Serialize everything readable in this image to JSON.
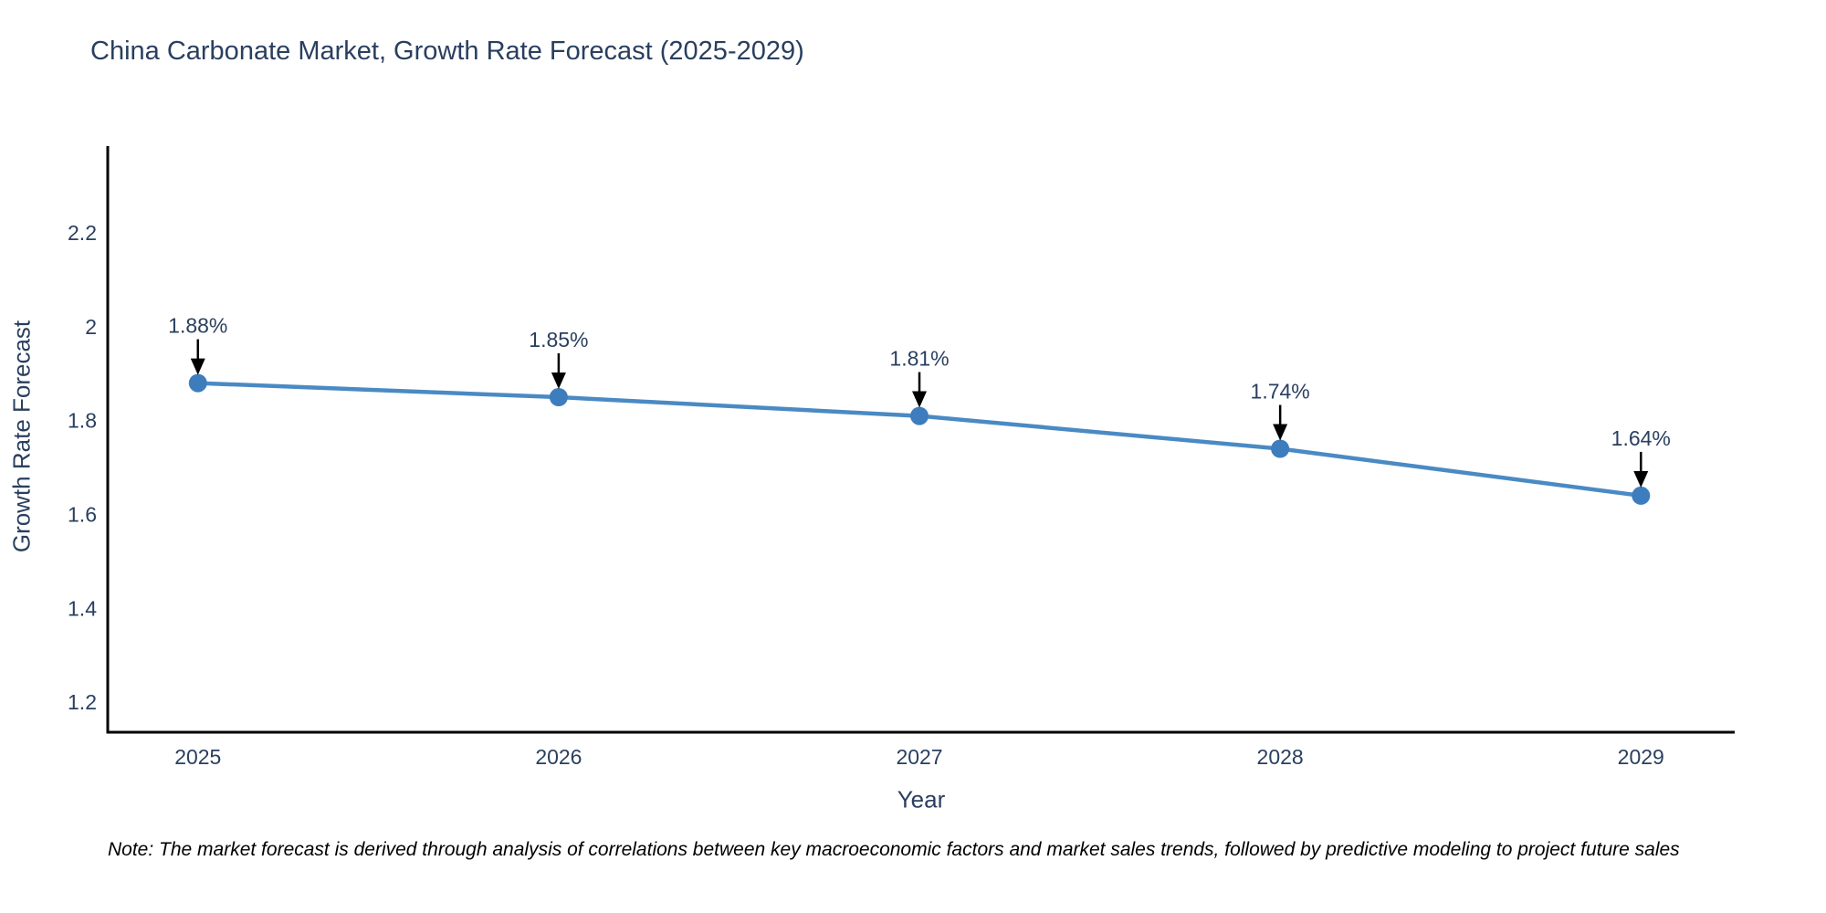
{
  "header": {
    "title": "China Carbonate Market, Growth Rate Forecast (2025-2029)"
  },
  "footer": {
    "note": "Note: The market forecast is derived through analysis of correlations between key macroeconomic factors and market sales trends, followed by predictive modeling to project future sales"
  },
  "chart_data": {
    "type": "line",
    "title": "China Carbonate Market, Growth Rate Forecast (2025-2029)",
    "xlabel": "Year",
    "ylabel": "Growth Rate Forecast",
    "x": [
      2025,
      2026,
      2027,
      2028,
      2029
    ],
    "series": [
      {
        "name": "Growth Rate Forecast",
        "values": [
          1.88,
          1.85,
          1.81,
          1.74,
          1.64
        ]
      }
    ],
    "point_labels": [
      "1.88%",
      "1.85%",
      "1.81%",
      "1.74%",
      "1.64%"
    ],
    "yticks": [
      1.2,
      1.4,
      1.6,
      1.8,
      2,
      2.2
    ],
    "xlim": [
      2024.75,
      2029.26
    ],
    "ylim": [
      1.136,
      2.385
    ],
    "grid": false,
    "legend": "none",
    "colors": {
      "line": "#4a8ac4",
      "marker": "#3d7dbe",
      "axis": "#000000",
      "tick_label": "#2a3f5f",
      "annotation_text": "#2a3f5f",
      "arrow": "#000000",
      "title": "#2a3f5f"
    }
  }
}
